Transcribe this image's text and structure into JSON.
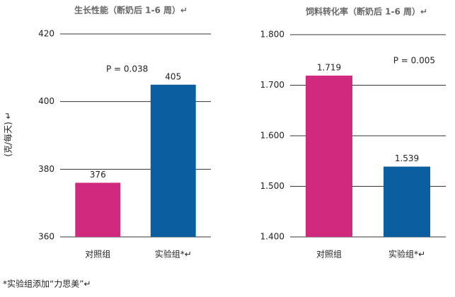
{
  "chart_data": [
    {
      "type": "bar",
      "title": "生长性能（断奶后 1-6 周）↵",
      "ylabel": "(克/每天) ↵",
      "categories": [
        "对照组",
        "实验组*↵"
      ],
      "values": [
        376,
        405
      ],
      "colors": [
        "#d0297e",
        "#0b5fa0"
      ],
      "ylim": [
        360,
        420
      ],
      "yticks": [
        360,
        380,
        400,
        420
      ],
      "grid": true,
      "annotation": "P = 0.038"
    },
    {
      "type": "bar",
      "title": "饲料转化率（断奶后 1-6 周）↵",
      "categories": [
        "对照组",
        "实验组*↵"
      ],
      "values": [
        1.719,
        1.539
      ],
      "colors": [
        "#d0297e",
        "#0b5fa0"
      ],
      "ylim": [
        1.4,
        1.8
      ],
      "yticks": [
        {
          "value": 1.4,
          "label": "1.400"
        },
        {
          "value": 1.5,
          "label": "1.500"
        },
        {
          "value": 1.6,
          "label": "1.600"
        },
        {
          "value": 1.7,
          "label": "1.700"
        },
        {
          "value": 1.8,
          "label": "1.800"
        }
      ],
      "grid": true,
      "annotation": "P = 0.005"
    }
  ],
  "footnote": "*实验组添加“力思美”↵"
}
